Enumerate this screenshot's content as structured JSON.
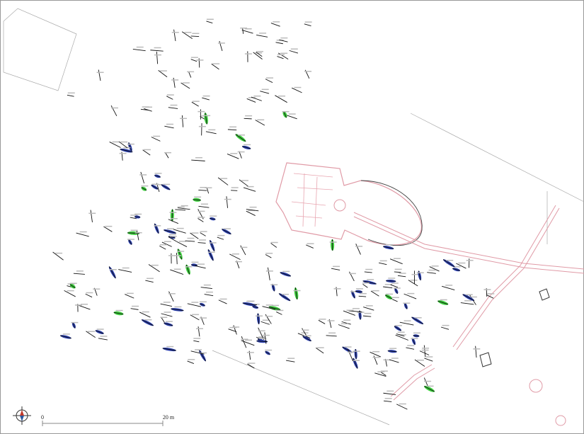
{
  "scale_bar": {
    "start_label": "0",
    "end_label": "20 m"
  }
}
